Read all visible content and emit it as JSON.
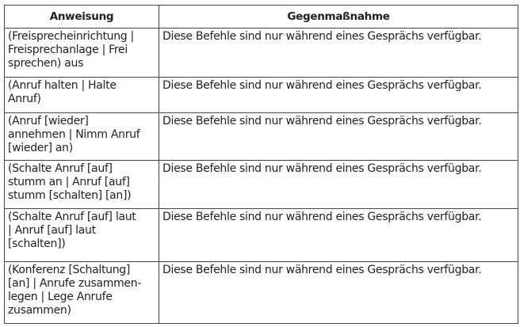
{
  "table": {
    "headers": [
      "Anweisung",
      "Gegenmaßnahme"
    ],
    "rows": [
      {
        "command": "(Freisprecheinrichtung |\nFreisprechanlage | Frei\nsprechen) aus",
        "action": "Diese Befehle sind nur während eines Gesprächs verfügbar."
      },
      {
        "command": "(Anruf halten | Halte\nAnruf)",
        "action": "Diese Befehle sind nur während eines Gesprächs verfügbar."
      },
      {
        "command": "(Anruf [wieder]\nannehmen | Nimm Anruf\n[wieder] an)",
        "action": "Diese Befehle sind nur während eines Gesprächs verfügbar."
      },
      {
        "command": "(Schalte Anruf [auf]\nstumm an | Anruf [auf]\nstumm [schalten] [an])",
        "action": "Diese Befehle sind nur während eines Gesprächs verfügbar."
      },
      {
        "command": "(Schalte Anruf [auf] laut\n| Anruf [auf] laut\n[schalten])",
        "action": "Diese Befehle sind nur während eines Gesprächs verfügbar."
      },
      {
        "command": "(Konferenz [Schaltung]\n[an] | Anrufe zusammen-\nlegen | Lege Anrufe\nzusammen)",
        "action": "Diese Befehle sind nur während eines Gesprächs verfügbar."
      }
    ]
  }
}
